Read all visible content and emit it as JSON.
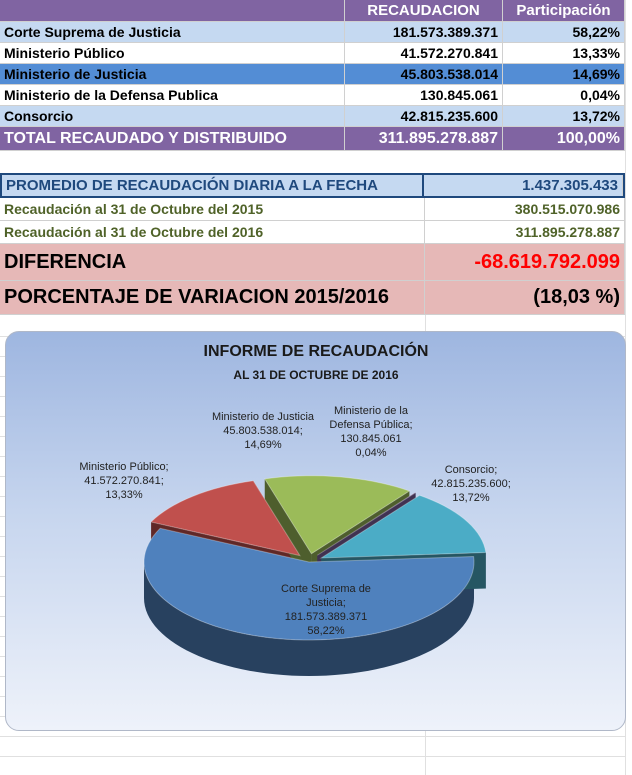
{
  "table": {
    "header": [
      "RECAUDACION",
      "Participación"
    ],
    "rows": [
      [
        "Corte Suprema de Justicia",
        "181.573.389.371",
        "58,22%"
      ],
      [
        "Ministerio Público",
        "41.572.270.841",
        "13,33%"
      ],
      [
        "Ministerio de Justicia",
        "45.803.538.014",
        "14,69%"
      ],
      [
        "Ministerio de la Defensa Publica",
        "130.845.061",
        "0,04%"
      ],
      [
        "Consorcio",
        "42.815.235.600",
        "13,72%"
      ]
    ],
    "total": [
      "TOTAL RECAUDADO Y DISTRIBUIDO",
      "311.895.278.887",
      "100,00%"
    ]
  },
  "summary": {
    "promedio": [
      "PROMEDIO DE RECAUDACIÓN DIARIA A LA FECHA",
      "1.437.305.433"
    ],
    "rows": [
      [
        "Recaudación al 31 de Octubre del 2015",
        "380.515.070.986"
      ],
      [
        "Recaudación al 31 de Octubre del 2016",
        "311.895.278.887"
      ]
    ],
    "diferencia": [
      "DIFERENCIA",
      "-68.619.792.099"
    ],
    "porcentaje": [
      "PORCENTAJE DE VARIACION 2015/2016",
      "(18,03 %)"
    ]
  },
  "chart_data": {
    "type": "pie",
    "title": "INFORME DE RECAUDACIÓN",
    "subtitle": "AL 31 DE OCTUBRE DE 2016",
    "categories": [
      "Corte Suprema de Justicia;",
      "Ministerio Público;",
      "Ministerio de Justicia",
      "Ministerio de la Defensa Pública;",
      "Consorcio;"
    ],
    "values": [
      181573389371,
      41572270841,
      45803538014,
      130845061,
      42815235600
    ],
    "value_labels": [
      "181.573.389.371",
      "41.572.270.841;",
      "45.803.538.014;",
      "130.845.061",
      "42.815.235.600;"
    ],
    "percent_labels": [
      "58,22%",
      "13,33%",
      "14,69%",
      "0,04%",
      "13,72%"
    ],
    "colors": [
      "#4f81bd",
      "#c0504d",
      "#9bbb59",
      "#8064a2",
      "#4bacc6"
    ]
  }
}
